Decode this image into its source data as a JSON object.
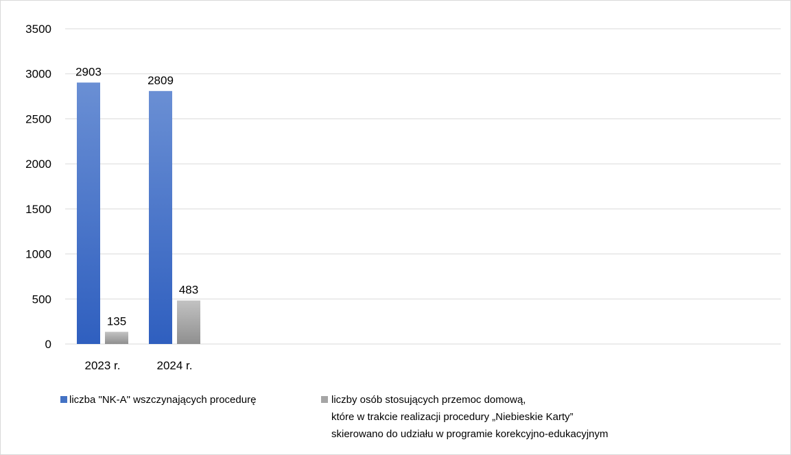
{
  "chart_data": {
    "type": "bar",
    "categories": [
      "2023 r.",
      "2024 r."
    ],
    "series": [
      {
        "name": "liczba \"NK-A\" wszczynających procedurę",
        "values": [
          2903,
          2809
        ],
        "color": "#4472c4"
      },
      {
        "name_lines": [
          "liczby osób stosujących przemoc domową,",
          "które w trakcie realizacji procedury „Niebieskie Karty”",
          "skierowano do udziału w programie korekcyjno-edukacyjnym"
        ],
        "values": [
          135,
          483
        ],
        "color": "#a5a5a5"
      }
    ],
    "yticks": [
      0,
      500,
      1000,
      1500,
      2000,
      2500,
      3000,
      3500
    ],
    "ylim": [
      0,
      3500
    ],
    "grid": true,
    "legend_position": "bottom-left"
  }
}
